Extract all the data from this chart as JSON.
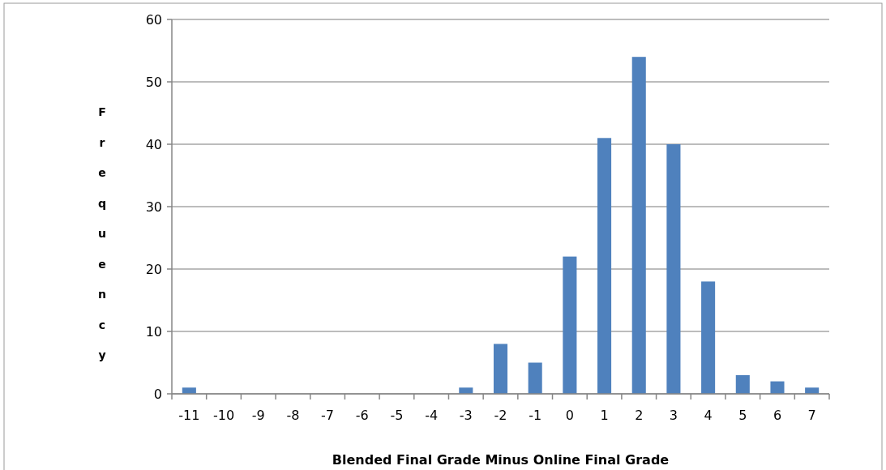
{
  "chart_data": {
    "type": "bar",
    "xlabel": "Blended Final Grade Minus Online Final Grade",
    "ylabel": "Frequency",
    "categories": [
      "-11",
      "-10",
      "-9",
      "-8",
      "-7",
      "-6",
      "-5",
      "-4",
      "-3",
      "-2",
      "-1",
      "0",
      "1",
      "2",
      "3",
      "4",
      "5",
      "6",
      "7"
    ],
    "values": [
      1,
      0,
      0,
      0,
      0,
      0,
      0,
      0,
      1,
      8,
      5,
      22,
      41,
      54,
      40,
      18,
      3,
      2,
      1
    ],
    "color": "#4f81bd",
    "ylim": [
      0,
      60
    ],
    "yticks": [
      0,
      10,
      20,
      30,
      40,
      50,
      60
    ],
    "grid": "y"
  }
}
